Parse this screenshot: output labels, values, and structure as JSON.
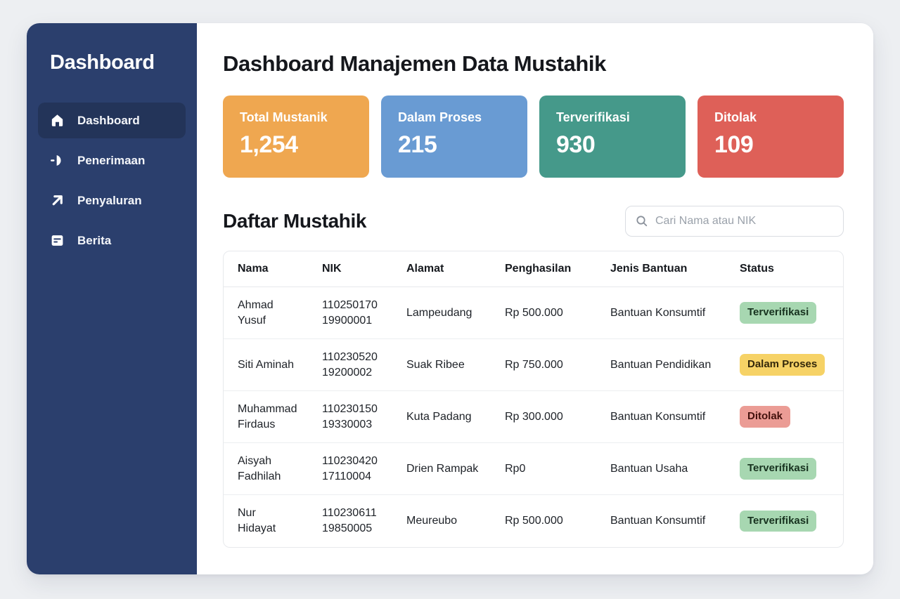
{
  "sidebar": {
    "title": "Dashboard",
    "colors": {
      "bg": "#2b3f6d",
      "active_item_bg": "#233459"
    },
    "items": [
      {
        "label": "Dashboard",
        "icon": "home-icon",
        "active": true
      },
      {
        "label": "Penerimaan",
        "icon": "receive-icon",
        "active": false
      },
      {
        "label": "Penyaluran",
        "icon": "arrow-up-right-icon",
        "active": false
      },
      {
        "label": "Berita",
        "icon": "news-icon",
        "active": false
      }
    ]
  },
  "header": {
    "title": "Dashboard Manajemen Data Mustahik"
  },
  "stats": [
    {
      "label": "Total Mustanik",
      "value": "1,254",
      "color": "#efa750"
    },
    {
      "label": "Dalam Proses",
      "value": "215",
      "color": "#699bd3"
    },
    {
      "label": "Terverifikasi",
      "value": "930",
      "color": "#45998a"
    },
    {
      "label": "Ditolak",
      "value": "109",
      "color": "#de6058"
    }
  ],
  "list_section": {
    "title": "Daftar Mustahik",
    "search_placeholder": "Cari Nama atau NIK",
    "search_icon": "magnifier-icon"
  },
  "table": {
    "columns": [
      "Nama",
      "NIK",
      "Alamat",
      "Penghasilan",
      "Jenis Bantuan",
      "Status"
    ],
    "column_keys": [
      "nama",
      "nik",
      "alamat",
      "penghasilan",
      "jenis",
      "status"
    ],
    "status_colors": {
      "Terverifikasi": {
        "bg": "#a7d7b1",
        "text": "#17321f"
      },
      "Dalam Proses": {
        "bg": "#f6d266",
        "text": "#33270a"
      },
      "Ditolak": {
        "bg": "#eb9c95",
        "text": "#43110c"
      }
    },
    "rows": [
      {
        "nama": "Ahmad\nYusuf",
        "nik": "110250170\n19900001",
        "alamat": "Lampeudang",
        "penghasilan": "Rp 500.000",
        "jenis": "Bantuan Konsumtif",
        "status": "Terverifikasi",
        "status_type": "success"
      },
      {
        "nama": "Siti Aminah",
        "nik": "110230520\n19200002",
        "alamat": "Suak Ribee",
        "penghasilan": "Rp 750.000",
        "jenis": "Bantuan Pendidikan",
        "status": "Dalam Proses",
        "status_type": "warning"
      },
      {
        "nama": "Muhammad\nFirdaus",
        "nik": "110230150\n19330003",
        "alamat": "Kuta Padang",
        "penghasilan": "Rp 300.000",
        "jenis": "Bantuan Konsumtif",
        "status": "Ditolak",
        "status_type": "danger"
      },
      {
        "nama": "Aisyah\nFadhilah",
        "nik": "110230420\n17110004",
        "alamat": "Drien Rampak",
        "penghasilan": "Rp0",
        "jenis": "Bantuan Usaha",
        "status": "Terverifikasi",
        "status_type": "success"
      },
      {
        "nama": "Nur\nHidayat",
        "nik": "110230611\n19850005",
        "alamat": "Meureubo",
        "penghasilan": "Rp 500.000",
        "jenis": "Bantuan Konsumtif",
        "status": "Terverifikasi",
        "status_type": "success"
      }
    ]
  }
}
